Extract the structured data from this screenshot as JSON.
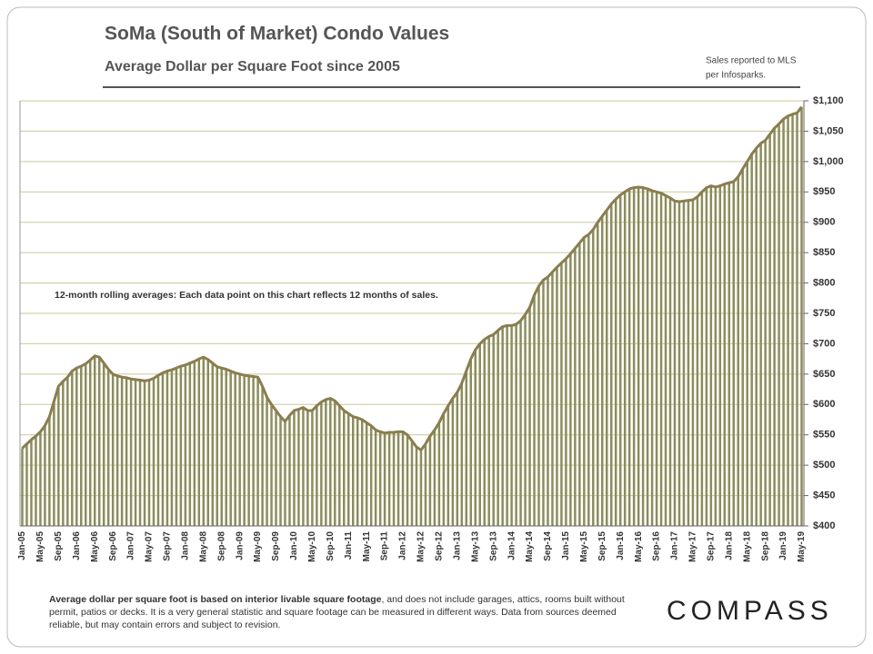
{
  "chart_data": {
    "type": "bar",
    "title": "SoMa (South of Market) Condo Values",
    "subtitle": "Average Dollar per Square Foot since 2005",
    "source": [
      "Sales reported to MLS",
      "per Infosparks."
    ],
    "annotation": "12-month rolling averages: Each data point on this chart reflects 12 months of sales.",
    "categories": [
      "Jan-05",
      null,
      null,
      null,
      "May-05",
      null,
      null,
      null,
      "Sep-05",
      null,
      null,
      null,
      "Jan-06",
      null,
      null,
      null,
      "May-06",
      null,
      null,
      null,
      "Sep-06",
      null,
      null,
      null,
      "Jan-07",
      null,
      null,
      null,
      "May-07",
      null,
      null,
      null,
      "Sep-07",
      null,
      null,
      null,
      "Jan-08",
      null,
      null,
      null,
      "May-08",
      null,
      null,
      null,
      "Sep-08",
      null,
      null,
      null,
      "Jan-09",
      null,
      null,
      null,
      "May-09",
      null,
      null,
      null,
      "Sep-09",
      null,
      null,
      null,
      "Jan-10",
      null,
      null,
      null,
      "May-10",
      null,
      null,
      null,
      "Sep-10",
      null,
      null,
      null,
      "Jan-11",
      null,
      null,
      null,
      "May-11",
      null,
      null,
      null,
      "Sep-11",
      null,
      null,
      null,
      "Jan-12",
      null,
      null,
      null,
      "May-12",
      null,
      null,
      null,
      "Sep-12",
      null,
      null,
      null,
      "Jan-13",
      null,
      null,
      null,
      "May-13",
      null,
      null,
      null,
      "Sep-13",
      null,
      null,
      null,
      "Jan-14",
      null,
      null,
      null,
      "May-14",
      null,
      null,
      null,
      "Sep-14",
      null,
      null,
      null,
      "Jan-15",
      null,
      null,
      null,
      "May-15",
      null,
      null,
      null,
      "Sep-15",
      null,
      null,
      null,
      "Jan-16",
      null,
      null,
      null,
      "May-16",
      null,
      null,
      null,
      "Sep-16",
      null,
      null,
      null,
      "Jan-17",
      null,
      null,
      null,
      "May-17",
      null,
      null,
      null,
      "Sep-17",
      null,
      null,
      null,
      "Jan-18",
      null,
      null,
      null,
      "May-18",
      null,
      null,
      null,
      "Sep-18",
      null,
      null,
      null,
      "Jan-19",
      null,
      null,
      null,
      "May-19"
    ],
    "values": [
      528,
      535,
      542,
      548,
      555,
      565,
      580,
      605,
      630,
      638,
      645,
      655,
      660,
      663,
      667,
      673,
      680,
      678,
      668,
      658,
      650,
      647,
      645,
      644,
      642,
      641,
      640,
      639,
      640,
      643,
      648,
      652,
      655,
      657,
      660,
      663,
      665,
      668,
      671,
      675,
      678,
      674,
      668,
      662,
      660,
      658,
      655,
      652,
      650,
      648,
      647,
      646,
      645,
      630,
      612,
      600,
      590,
      580,
      572,
      582,
      590,
      592,
      595,
      590,
      590,
      598,
      604,
      608,
      610,
      606,
      598,
      590,
      585,
      580,
      578,
      575,
      570,
      565,
      558,
      555,
      553,
      554,
      554,
      555,
      555,
      550,
      540,
      530,
      525,
      535,
      548,
      558,
      570,
      585,
      598,
      610,
      620,
      635,
      655,
      675,
      690,
      700,
      707,
      712,
      715,
      722,
      728,
      730,
      730,
      732,
      738,
      748,
      760,
      780,
      795,
      805,
      810,
      818,
      826,
      833,
      840,
      848,
      857,
      866,
      875,
      880,
      888,
      900,
      910,
      920,
      930,
      938,
      945,
      950,
      955,
      957,
      958,
      957,
      955,
      952,
      950,
      948,
      944,
      940,
      935,
      934,
      935,
      936,
      937,
      942,
      950,
      957,
      960,
      958,
      960,
      963,
      965,
      967,
      975,
      988,
      1000,
      1012,
      1022,
      1030,
      1035,
      1045,
      1055,
      1062,
      1070,
      1075,
      1078,
      1080,
      1090
    ],
    "bar_color": "#8c8c5c",
    "line_color": "#8a7d50",
    "ylim": [
      400,
      1100
    ],
    "yticks": [
      {
        "value": 400,
        "label": "$400"
      },
      {
        "value": 450,
        "label": "$450"
      },
      {
        "value": 500,
        "label": "$500"
      },
      {
        "value": 550,
        "label": "$550"
      },
      {
        "value": 600,
        "label": "$600"
      },
      {
        "value": 650,
        "label": "$650"
      },
      {
        "value": 700,
        "label": "$700"
      },
      {
        "value": 750,
        "label": "$750"
      },
      {
        "value": 800,
        "label": "$800"
      },
      {
        "value": 850,
        "label": "$850"
      },
      {
        "value": 900,
        "label": "$900"
      },
      {
        "value": 950,
        "label": "$950"
      },
      {
        "value": 1000,
        "label": "$1,000"
      },
      {
        "value": 1050,
        "label": "$1,050"
      },
      {
        "value": 1100,
        "label": "$1,100"
      }
    ],
    "grid": true
  },
  "footnote": {
    "bold": "Average dollar per square foot is based on interior livable square footage",
    "text": ", and does not include garages, attics, rooms built without permit, patios or decks. It is a very general statistic and square footage can be measured in different ways. Data from sources deemed reliable, but may contain errors and subject to revision."
  },
  "logo": "COMPASS"
}
